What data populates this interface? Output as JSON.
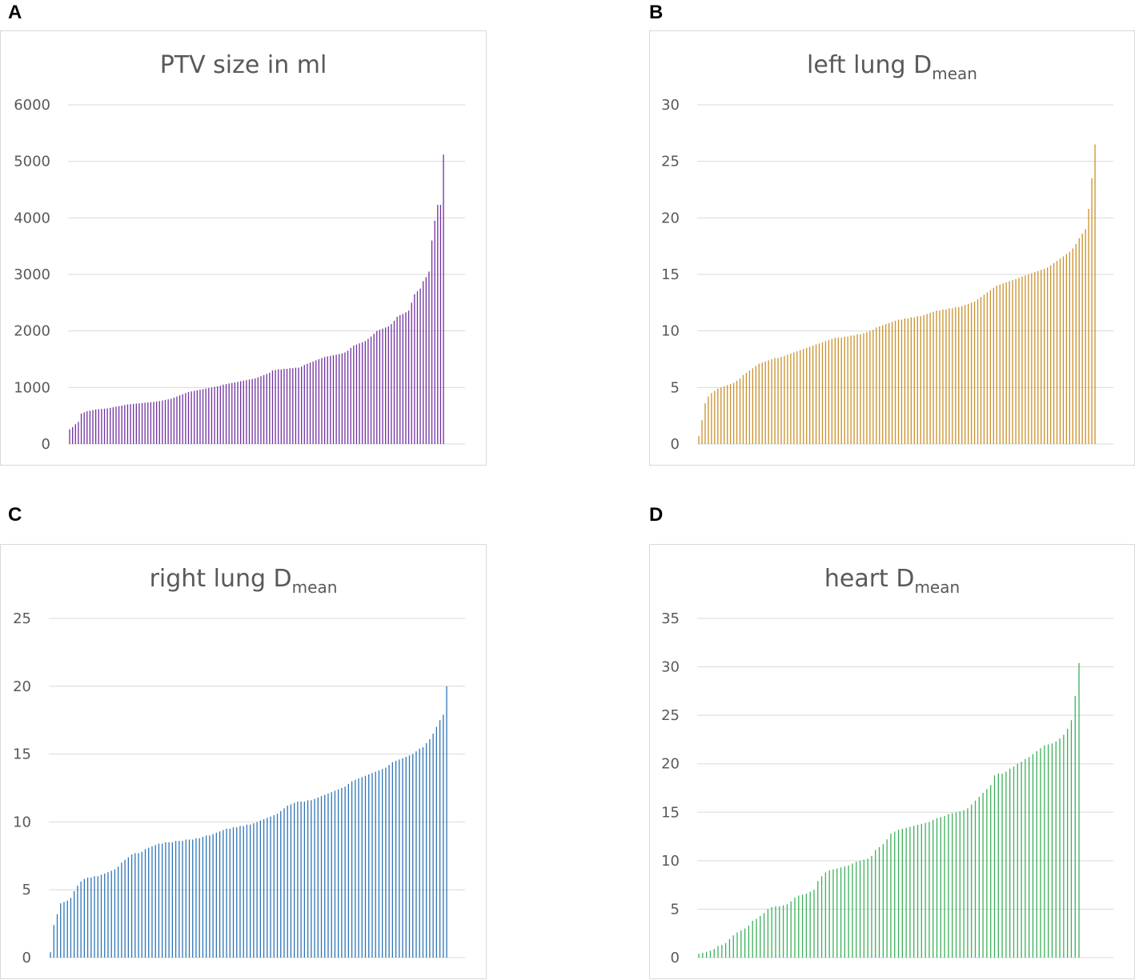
{
  "chart_data": [
    {
      "panel": "A",
      "type": "bar",
      "title": "PTV size in ml",
      "title_sub": "",
      "color": "#7030a0",
      "ylim": [
        0,
        6000
      ],
      "yticks": [
        0,
        1000,
        2000,
        3000,
        4000,
        5000,
        6000
      ],
      "xlabel": "",
      "ylabel": "",
      "values": [
        260,
        300,
        350,
        390,
        540,
        560,
        580,
        590,
        600,
        610,
        615,
        620,
        625,
        630,
        640,
        650,
        660,
        670,
        680,
        690,
        700,
        705,
        710,
        715,
        720,
        725,
        730,
        735,
        740,
        745,
        750,
        760,
        770,
        780,
        790,
        800,
        820,
        840,
        860,
        880,
        900,
        920,
        930,
        940,
        950,
        960,
        970,
        980,
        990,
        1000,
        1010,
        1020,
        1030,
        1050,
        1060,
        1070,
        1080,
        1090,
        1100,
        1110,
        1120,
        1130,
        1140,
        1150,
        1160,
        1180,
        1200,
        1220,
        1240,
        1260,
        1300,
        1310,
        1320,
        1320,
        1330,
        1330,
        1340,
        1340,
        1350,
        1350,
        1370,
        1400,
        1420,
        1440,
        1460,
        1480,
        1500,
        1520,
        1540,
        1550,
        1560,
        1570,
        1580,
        1590,
        1600,
        1620,
        1650,
        1700,
        1740,
        1760,
        1780,
        1800,
        1820,
        1860,
        1900,
        1950,
        2000,
        2020,
        2040,
        2060,
        2080,
        2120,
        2180,
        2250,
        2280,
        2300,
        2330,
        2360,
        2500,
        2650,
        2700,
        2750,
        2880,
        2950,
        3050,
        3600,
        3950,
        4230,
        4230,
        5120
      ]
    },
    {
      "panel": "B",
      "type": "bar",
      "title": "left lung D",
      "title_sub": "mean",
      "color": "#c9902a",
      "ylim": [
        0,
        30
      ],
      "yticks": [
        0,
        5,
        10,
        15,
        20,
        25,
        30
      ],
      "xlabel": "",
      "ylabel": "",
      "values": [
        0.7,
        2.1,
        3.6,
        4.2,
        4.5,
        4.7,
        4.9,
        5.0,
        5.1,
        5.2,
        5.3,
        5.4,
        5.6,
        5.8,
        6.1,
        6.3,
        6.5,
        6.7,
        6.9,
        7.1,
        7.2,
        7.3,
        7.4,
        7.5,
        7.6,
        7.6,
        7.7,
        7.8,
        7.9,
        8.0,
        8.1,
        8.2,
        8.3,
        8.4,
        8.5,
        8.6,
        8.7,
        8.8,
        8.9,
        9.0,
        9.1,
        9.2,
        9.3,
        9.4,
        9.4,
        9.4,
        9.5,
        9.5,
        9.6,
        9.6,
        9.7,
        9.7,
        9.8,
        9.9,
        10.0,
        10.1,
        10.3,
        10.4,
        10.5,
        10.6,
        10.7,
        10.8,
        10.9,
        11.0,
        11.0,
        11.1,
        11.1,
        11.2,
        11.2,
        11.3,
        11.3,
        11.4,
        11.5,
        11.6,
        11.7,
        11.8,
        11.8,
        11.9,
        11.9,
        12.0,
        12.0,
        12.1,
        12.1,
        12.2,
        12.3,
        12.4,
        12.5,
        12.6,
        12.8,
        13.0,
        13.2,
        13.4,
        13.6,
        13.8,
        14.0,
        14.1,
        14.2,
        14.3,
        14.4,
        14.5,
        14.6,
        14.7,
        14.8,
        14.9,
        15.0,
        15.1,
        15.2,
        15.3,
        15.4,
        15.5,
        15.6,
        15.8,
        16.0,
        16.2,
        16.4,
        16.6,
        16.8,
        17.0,
        17.3,
        17.7,
        18.2,
        18.6,
        19.0,
        20.8,
        23.5,
        26.5
      ]
    },
    {
      "panel": "C",
      "type": "bar",
      "title": "right lung D",
      "title_sub": "mean",
      "color": "#2e75b6",
      "ylim": [
        0,
        25
      ],
      "yticks": [
        0,
        5,
        10,
        15,
        20,
        25
      ],
      "xlabel": "",
      "ylabel": "",
      "values": [
        0.4,
        2.4,
        3.2,
        4.0,
        4.1,
        4.2,
        4.4,
        4.9,
        5.3,
        5.6,
        5.8,
        5.9,
        5.9,
        6.0,
        6.0,
        6.1,
        6.2,
        6.3,
        6.4,
        6.5,
        6.7,
        7.0,
        7.2,
        7.4,
        7.6,
        7.7,
        7.7,
        7.8,
        8.0,
        8.1,
        8.2,
        8.3,
        8.4,
        8.4,
        8.5,
        8.5,
        8.5,
        8.6,
        8.6,
        8.6,
        8.7,
        8.7,
        8.7,
        8.8,
        8.8,
        8.9,
        9.0,
        9.0,
        9.1,
        9.2,
        9.3,
        9.4,
        9.5,
        9.5,
        9.6,
        9.6,
        9.7,
        9.7,
        9.8,
        9.8,
        9.9,
        10.0,
        10.1,
        10.2,
        10.3,
        10.4,
        10.5,
        10.6,
        10.8,
        11.0,
        11.2,
        11.3,
        11.4,
        11.5,
        11.5,
        11.5,
        11.6,
        11.6,
        11.7,
        11.8,
        11.9,
        12.0,
        12.1,
        12.2,
        12.3,
        12.4,
        12.5,
        12.6,
        12.8,
        13.0,
        13.1,
        13.2,
        13.3,
        13.4,
        13.5,
        13.6,
        13.7,
        13.8,
        13.9,
        14.0,
        14.2,
        14.4,
        14.5,
        14.6,
        14.7,
        14.8,
        14.9,
        15.0,
        15.2,
        15.4,
        15.5,
        15.8,
        16.1,
        16.5,
        17.0,
        17.5,
        17.9,
        20.0
      ]
    },
    {
      "panel": "D",
      "type": "bar",
      "title": "heart D",
      "title_sub": "mean",
      "color": "#3cb05a",
      "ylim": [
        0,
        35
      ],
      "yticks": [
        0,
        5,
        10,
        15,
        20,
        25,
        30,
        35
      ],
      "xlabel": "",
      "ylabel": "",
      "values": [
        0.4,
        0.5,
        0.6,
        0.7,
        0.9,
        1.2,
        1.3,
        1.5,
        1.9,
        2.3,
        2.6,
        2.8,
        3.0,
        3.3,
        3.8,
        4.0,
        4.3,
        4.6,
        5.0,
        5.2,
        5.3,
        5.3,
        5.4,
        5.5,
        5.8,
        6.2,
        6.4,
        6.5,
        6.6,
        6.8,
        7.0,
        7.9,
        8.4,
        8.8,
        9.0,
        9.1,
        9.2,
        9.3,
        9.4,
        9.5,
        9.7,
        9.9,
        10.0,
        10.1,
        10.2,
        10.5,
        11.1,
        11.4,
        11.7,
        12.2,
        12.8,
        13.0,
        13.2,
        13.3,
        13.4,
        13.5,
        13.6,
        13.7,
        13.8,
        13.9,
        14.0,
        14.2,
        14.4,
        14.5,
        14.6,
        14.8,
        14.9,
        15.0,
        15.1,
        15.2,
        15.4,
        15.8,
        16.2,
        16.6,
        17.0,
        17.4,
        17.8,
        18.8,
        19.0,
        19.0,
        19.2,
        19.5,
        19.7,
        20.0,
        20.2,
        20.5,
        20.7,
        21.0,
        21.3,
        21.6,
        21.9,
        22.0,
        22.1,
        22.3,
        22.6,
        23.0,
        23.6,
        24.5,
        27.0,
        30.4
      ]
    }
  ]
}
